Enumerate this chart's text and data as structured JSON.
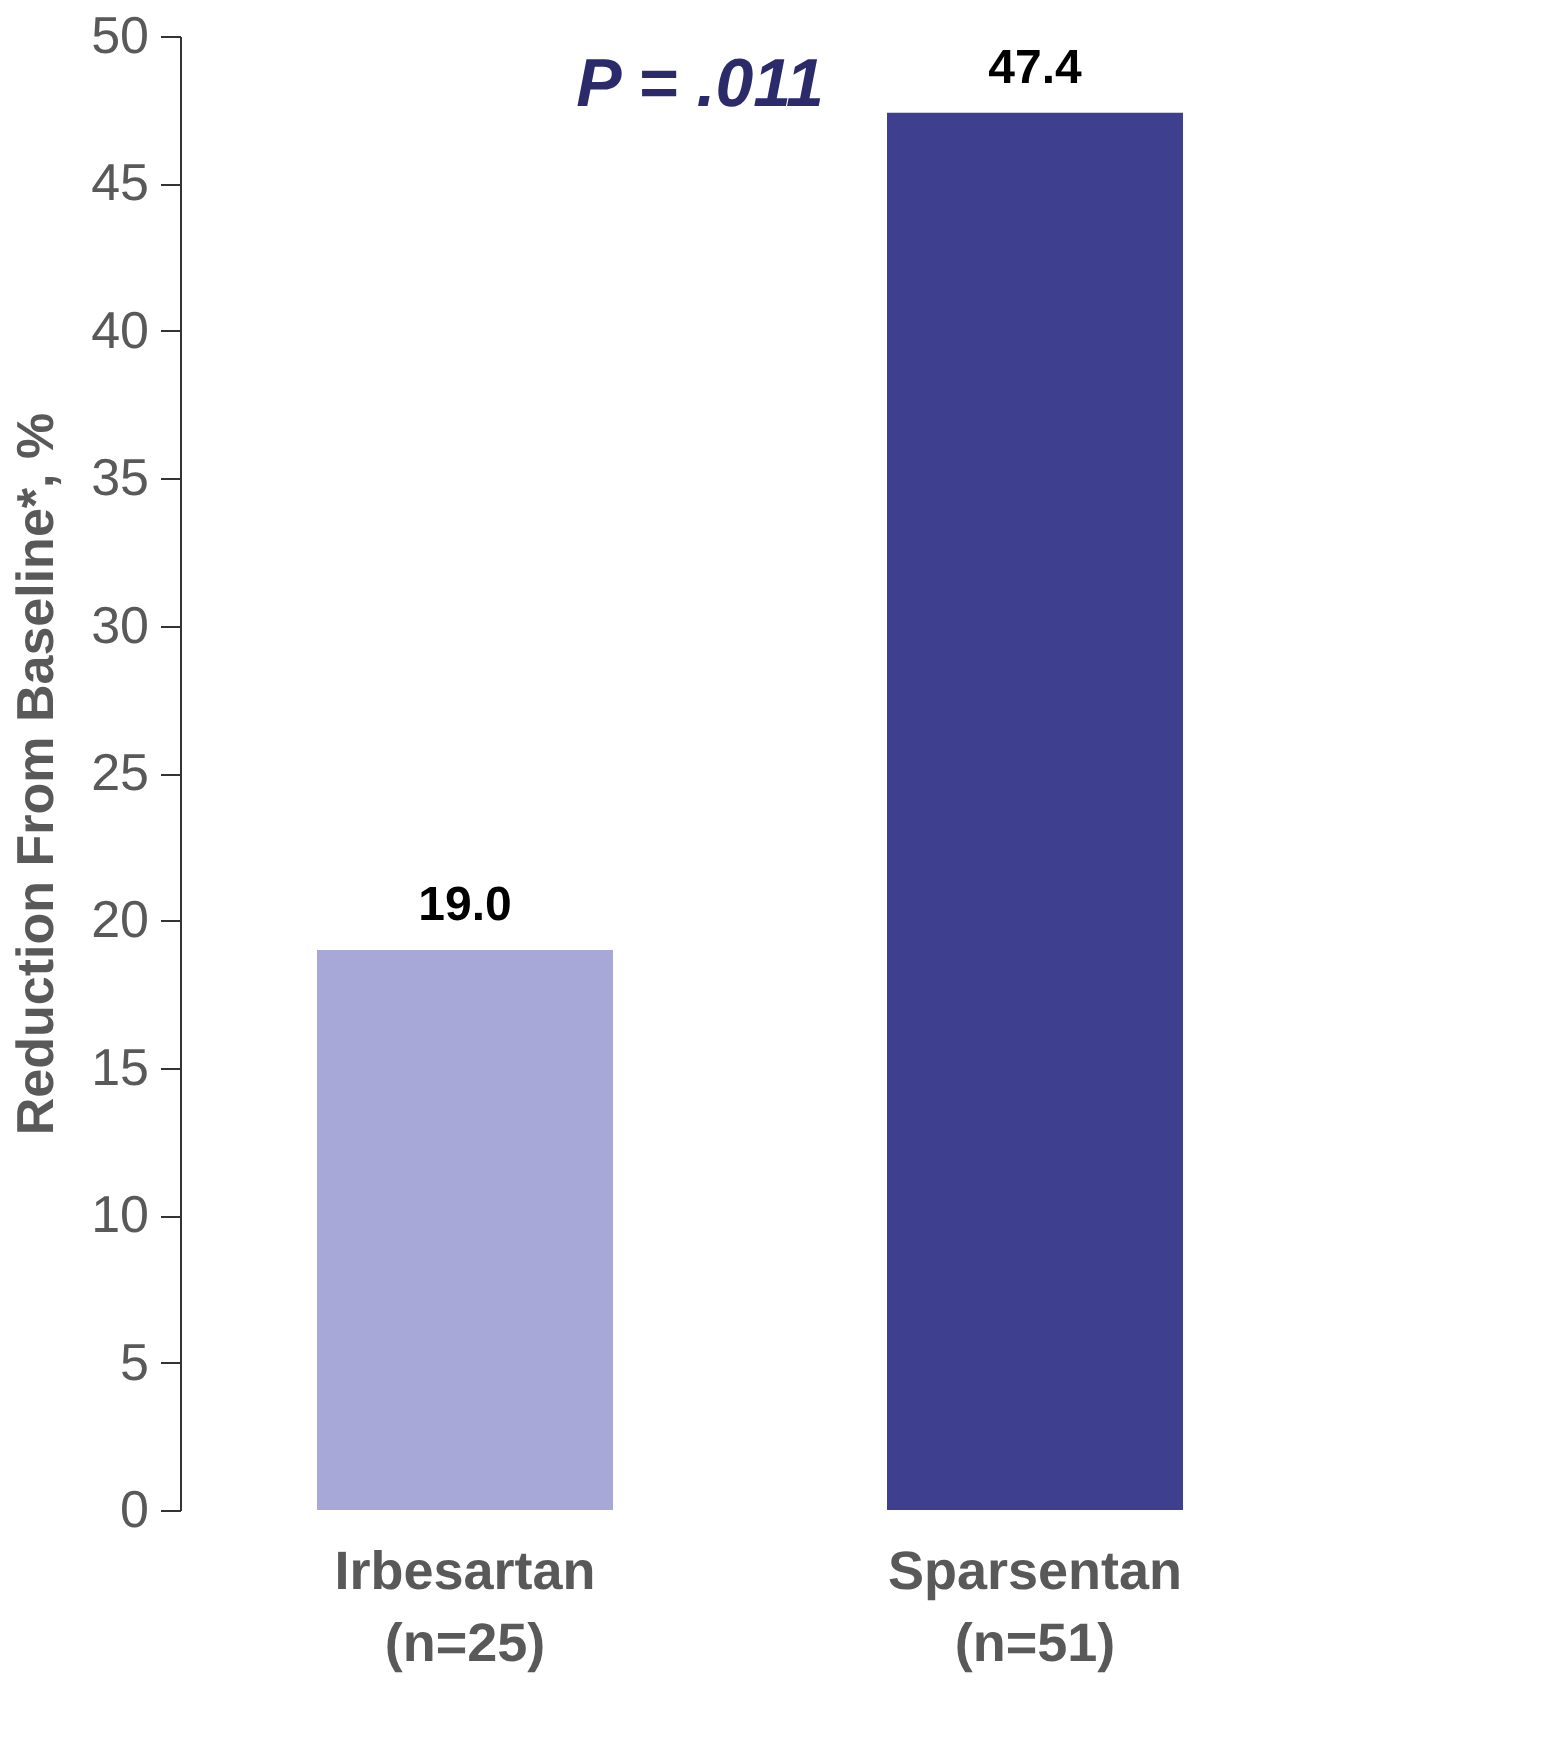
{
  "chart_data": {
    "type": "bar",
    "ylabel": "Reduction From Baseline*, %",
    "categories": [
      "Irbesartan\n(n=25)",
      "Sparsentan\n(n=51)"
    ],
    "values": [
      19.0,
      47.4
    ],
    "colors": [
      "#a8a8d8",
      "#3f3f8f"
    ],
    "value_labels": [
      "19.0",
      "47.4"
    ],
    "ylim": [
      0,
      50
    ],
    "yticks": [
      0,
      5,
      10,
      15,
      20,
      25,
      30,
      35,
      40,
      45,
      50
    ],
    "grid": false,
    "annotations": [
      "P = .011"
    ]
  }
}
